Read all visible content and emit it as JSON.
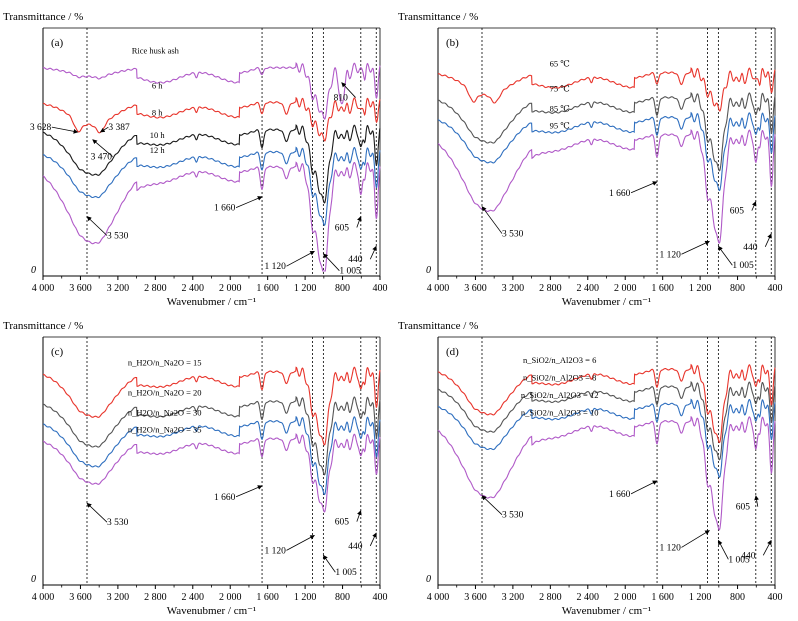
{
  "chart_data": [
    {
      "type": "line",
      "panel": "(a)",
      "ylabel": "Transmittance / %",
      "xlabel": "Wavenubmer / cm⁻¹",
      "origin_label": "0",
      "xlim": [
        4000,
        400
      ],
      "xticks": [
        "4 000",
        "3 600",
        "3 200",
        "2 800",
        "2 400",
        "2 000",
        "1 600",
        "1 200",
        "800",
        "400"
      ],
      "series": [
        {
          "name": "Rice husk ash",
          "color": "#b05ac8",
          "offset": 0.84,
          "profile": "rha"
        },
        {
          "name": "6 h",
          "color": "#e8352c",
          "offset": 0.7,
          "profile": "early"
        },
        {
          "name": "8 h",
          "color": "#1a1a1a",
          "offset": 0.59,
          "profile": "mid"
        },
        {
          "name": "10 h",
          "color": "#2f6fbf",
          "offset": 0.5,
          "profile": "mid"
        },
        {
          "name": "12 h",
          "color": "#b05ac8",
          "offset": 0.44,
          "profile": "deep"
        }
      ],
      "vlines": [
        3530,
        1660,
        1120,
        1005,
        605,
        440
      ],
      "annotations": [
        {
          "text": "3 628",
          "x": 3628,
          "y": 0.58,
          "dx": -48,
          "dy": -2
        },
        {
          "text": "3 387",
          "x": 3387,
          "y": 0.58,
          "dx": 8,
          "dy": -2
        },
        {
          "text": "3 470",
          "x": 3470,
          "y": 0.55,
          "dx": -2,
          "dy": 20
        },
        {
          "text": "810",
          "x": 810,
          "y": 0.78,
          "dx": -8,
          "dy": 18
        },
        {
          "text": "1 660",
          "x": 1660,
          "y": 0.32,
          "dx": -48,
          "dy": 14
        },
        {
          "text": "3 530",
          "x": 3530,
          "y": 0.24,
          "dx": 20,
          "dy": 22
        },
        {
          "text": "1 120",
          "x": 1100,
          "y": 0.1,
          "dx": -50,
          "dy": 18
        },
        {
          "text": "1 005",
          "x": 1005,
          "y": 0.09,
          "dx": 16,
          "dy": 20
        },
        {
          "text": "605",
          "x": 605,
          "y": 0.24,
          "dx": -26,
          "dy": 14
        },
        {
          "text": "440",
          "x": 440,
          "y": 0.12,
          "dx": -28,
          "dy": 16
        }
      ]
    },
    {
      "type": "line",
      "panel": "(b)",
      "ylabel": "Transmittance / %",
      "xlabel": "Wavenubmer / cm⁻¹",
      "origin_label": "0",
      "xlim": [
        4000,
        400
      ],
      "xticks": [
        "4 000",
        "3 600",
        "3 200",
        "2 800",
        "2 400",
        "2 000",
        "1 600",
        "1 200",
        "800",
        "400"
      ],
      "series": [
        {
          "name": "65 ℃",
          "color": "#e8352c",
          "offset": 0.82,
          "profile": "early"
        },
        {
          "name": "75 ℃",
          "color": "#555555",
          "offset": 0.72,
          "profile": "mid"
        },
        {
          "name": "85 ℃",
          "color": "#2f6fbf",
          "offset": 0.64,
          "profile": "mid"
        },
        {
          "name": "95 ℃",
          "color": "#b05ac8",
          "offset": 0.57,
          "profile": "deep"
        }
      ],
      "vlines": [
        3530,
        1660,
        1120,
        1005,
        605,
        440
      ],
      "annotations": [
        {
          "text": "1 660",
          "x": 1660,
          "y": 0.38,
          "dx": -48,
          "dy": 14
        },
        {
          "text": "3 530",
          "x": 3530,
          "y": 0.28,
          "dx": 20,
          "dy": 30
        },
        {
          "text": "1 120",
          "x": 1100,
          "y": 0.14,
          "dx": -50,
          "dy": 16
        },
        {
          "text": "1 005",
          "x": 1005,
          "y": 0.12,
          "dx": 14,
          "dy": 22
        },
        {
          "text": "605",
          "x": 605,
          "y": 0.3,
          "dx": -26,
          "dy": 12
        },
        {
          "text": "440",
          "x": 440,
          "y": 0.17,
          "dx": -28,
          "dy": 16
        }
      ]
    },
    {
      "type": "line",
      "panel": "(c)",
      "ylabel": "Transmittance / %",
      "xlabel": "Wavenubmer / cm⁻¹",
      "origin_label": "0",
      "xlim": [
        4000,
        400
      ],
      "xticks": [
        "4 000",
        "3 600",
        "3 200",
        "2 800",
        "2 400",
        "2 000",
        "1 600",
        "1 200",
        "800",
        "400"
      ],
      "series": [
        {
          "name": "15",
          "color": "#e8352c",
          "offset": 0.86,
          "profile": "mid"
        },
        {
          "name": "20",
          "color": "#555555",
          "offset": 0.74,
          "profile": "mid"
        },
        {
          "name": "30",
          "color": "#2f6fbf",
          "offset": 0.66,
          "profile": "mid"
        },
        {
          "name": "35",
          "color": "#b05ac8",
          "offset": 0.59,
          "profile": "mid"
        }
      ],
      "series_label_prefix": "n_H2O/n_Na2O = ",
      "vlines": [
        3530,
        1660,
        1120,
        1005,
        605,
        440
      ],
      "annotations": [
        {
          "text": "1 660",
          "x": 1660,
          "y": 0.4,
          "dx": -48,
          "dy": 14
        },
        {
          "text": "3 530",
          "x": 3530,
          "y": 0.33,
          "dx": 20,
          "dy": 22
        },
        {
          "text": "1 120",
          "x": 1100,
          "y": 0.2,
          "dx": -50,
          "dy": 18
        },
        {
          "text": "1 005",
          "x": 1005,
          "y": 0.12,
          "dx": 12,
          "dy": 20
        },
        {
          "text": "605",
          "x": 605,
          "y": 0.3,
          "dx": -26,
          "dy": 14
        },
        {
          "text": "440",
          "x": 440,
          "y": 0.21,
          "dx": -28,
          "dy": 16
        }
      ]
    },
    {
      "type": "line",
      "panel": "(d)",
      "ylabel": "Transmittance / %",
      "xlabel": "Wavenubmer / cm⁻¹",
      "origin_label": "0",
      "xlim": [
        4000,
        400
      ],
      "xticks": [
        "4 000",
        "3 600",
        "3 200",
        "2 800",
        "2 400",
        "2 000",
        "1 600",
        "1 200",
        "800",
        "400"
      ],
      "series": [
        {
          "name": "6",
          "color": "#e8352c",
          "offset": 0.87,
          "profile": "mid"
        },
        {
          "name": "8",
          "color": "#555555",
          "offset": 0.8,
          "profile": "mid"
        },
        {
          "name": "12",
          "color": "#2f6fbf",
          "offset": 0.73,
          "profile": "mid"
        },
        {
          "name": "10",
          "color": "#b05ac8",
          "offset": 0.66,
          "profile": "deep"
        }
      ],
      "series_label_prefix": "n_SiO2/n_Al2O3 = ",
      "vlines": [
        3530,
        1660,
        1120,
        1005,
        605,
        440
      ],
      "annotations": [
        {
          "text": "1 660",
          "x": 1660,
          "y": 0.42,
          "dx": -48,
          "dy": 16
        },
        {
          "text": "3 530",
          "x": 3530,
          "y": 0.36,
          "dx": 20,
          "dy": 22
        },
        {
          "text": "1 120",
          "x": 1100,
          "y": 0.22,
          "dx": -50,
          "dy": 20
        },
        {
          "text": "1 005",
          "x": 1005,
          "y": 0.18,
          "dx": 10,
          "dy": 22
        },
        {
          "text": "605",
          "x": 605,
          "y": 0.36,
          "dx": -20,
          "dy": 14
        },
        {
          "text": "440",
          "x": 440,
          "y": 0.18,
          "dx": -30,
          "dy": 18
        }
      ]
    }
  ]
}
